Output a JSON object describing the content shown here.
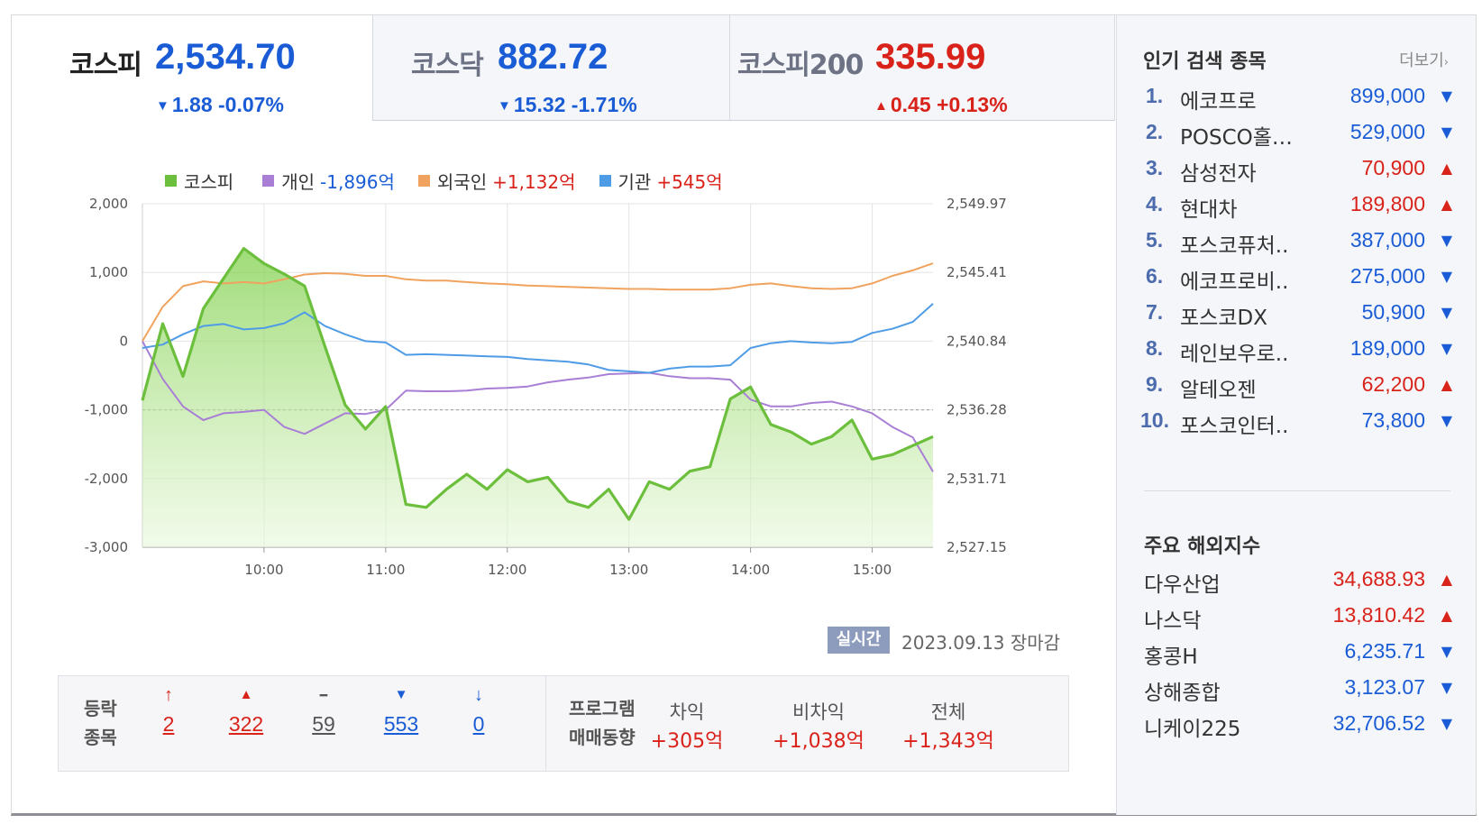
{
  "tabs": [
    {
      "name": "코스피",
      "value": "2,534.70",
      "direction": "down",
      "change": "1.88 -0.07%"
    },
    {
      "name": "코스닥",
      "value": "882.72",
      "direction": "down",
      "change": "15.32 -1.71%"
    },
    {
      "name": "코스피200",
      "value": "335.99",
      "direction": "up",
      "change": "0.45 +0.13%"
    }
  ],
  "legend": {
    "kospi": {
      "label": "코스피"
    },
    "individual": {
      "label": "개인",
      "value": "-1,896억"
    },
    "foreign": {
      "label": "외국인",
      "value": "+1,132억"
    },
    "institution": {
      "label": "기관",
      "value": "+545억"
    }
  },
  "colors": {
    "kospi": "#6cbf3c",
    "individual": "#a97fd6",
    "foreign": "#f0a35e",
    "institution": "#4f9ce6",
    "up": "#d9221a",
    "down": "#1a5cd6"
  },
  "chart_data": {
    "type": "line",
    "title": "",
    "x_ticks": [
      "10:00",
      "11:00",
      "12:00",
      "13:00",
      "14:00",
      "15:00"
    ],
    "x_range": [
      "09:00",
      "15:30"
    ],
    "y_left_ticks": [
      "2,000",
      "1,000",
      "0",
      "-1,000",
      "-2,000",
      "-3,000"
    ],
    "y_left_range": [
      -3000,
      2000
    ],
    "y_right_ticks": [
      "2,549.97",
      "2,545.41",
      "2,540.84",
      "2,536.28",
      "2,531.71",
      "2,527.15"
    ],
    "y_right_range": [
      2527.15,
      2549.97
    ],
    "reference_line_right": 2536.28,
    "grid": true,
    "legend_position": "top-left",
    "x": [
      "09:00",
      "09:10",
      "09:20",
      "09:30",
      "09:40",
      "09:50",
      "10:00",
      "10:10",
      "10:20",
      "10:30",
      "10:40",
      "10:50",
      "11:00",
      "11:10",
      "11:20",
      "11:30",
      "11:40",
      "11:50",
      "12:00",
      "12:10",
      "12:20",
      "12:30",
      "12:40",
      "12:50",
      "13:00",
      "13:10",
      "13:20",
      "13:30",
      "13:40",
      "13:50",
      "14:00",
      "14:10",
      "14:20",
      "14:30",
      "14:40",
      "14:50",
      "15:00",
      "15:10",
      "15:20",
      "15:30"
    ],
    "series": [
      {
        "name": "코스피",
        "axis": "right",
        "values": [
          2536.9,
          2542.0,
          2538.5,
          2543.0,
          2545.0,
          2547.0,
          2546.0,
          2545.3,
          2544.5,
          2540.5,
          2536.6,
          2535.0,
          2536.5,
          2530.0,
          2529.8,
          2531.0,
          2532.0,
          2531.0,
          2532.3,
          2531.5,
          2531.8,
          2530.2,
          2529.8,
          2531.0,
          2529.0,
          2531.5,
          2531.0,
          2532.2,
          2532.5,
          2537.0,
          2537.8,
          2535.3,
          2534.8,
          2534.0,
          2534.5,
          2535.6,
          2533.0,
          2533.3,
          2533.9,
          2534.5
        ]
      },
      {
        "name": "개인",
        "axis": "left",
        "values": [
          0,
          -550,
          -950,
          -1150,
          -1050,
          -1030,
          -1000,
          -1250,
          -1350,
          -1200,
          -1050,
          -1060,
          -1000,
          -720,
          -730,
          -730,
          -720,
          -690,
          -680,
          -660,
          -600,
          -560,
          -530,
          -480,
          -470,
          -460,
          -510,
          -540,
          -540,
          -560,
          -850,
          -950,
          -950,
          -900,
          -880,
          -950,
          -1050,
          -1250,
          -1400,
          -1900
        ]
      },
      {
        "name": "외국인",
        "axis": "left",
        "values": [
          0,
          500,
          800,
          870,
          840,
          860,
          840,
          900,
          970,
          990,
          980,
          950,
          950,
          900,
          880,
          880,
          860,
          840,
          830,
          810,
          800,
          790,
          780,
          770,
          760,
          760,
          750,
          750,
          750,
          770,
          820,
          840,
          800,
          770,
          760,
          770,
          840,
          950,
          1030,
          1132
        ]
      },
      {
        "name": "기관",
        "axis": "left",
        "values": [
          -100,
          -50,
          100,
          220,
          250,
          170,
          190,
          260,
          420,
          220,
          100,
          0,
          -20,
          -200,
          -190,
          -200,
          -210,
          -220,
          -230,
          -260,
          -280,
          -300,
          -340,
          -420,
          -440,
          -460,
          -400,
          -370,
          -370,
          -350,
          -100,
          -30,
          0,
          -20,
          -30,
          -10,
          120,
          180,
          280,
          545
        ]
      }
    ]
  },
  "chart_footer": {
    "badge": "실시간",
    "date": "2023.09.13 장마감"
  },
  "advance_decline": {
    "label_line1": "등락",
    "label_line2": "종목",
    "items": [
      {
        "key": "upper_limit",
        "icon": "↑",
        "count": "2"
      },
      {
        "key": "rising",
        "icon": "▲",
        "count": "322"
      },
      {
        "key": "unchanged",
        "icon": "━",
        "count": "59"
      },
      {
        "key": "falling",
        "icon": "▼",
        "count": "553"
      },
      {
        "key": "lower_limit",
        "icon": "↓",
        "count": "0"
      }
    ]
  },
  "program_trading": {
    "label_line1": "프로그램",
    "label_line2": "매매동향",
    "items": [
      {
        "label": "차익",
        "value": "+305억"
      },
      {
        "label": "비차익",
        "value": "+1,038억"
      },
      {
        "label": "전체",
        "value": "+1,343억"
      }
    ]
  },
  "popular": {
    "title": "인기 검색 종목",
    "more": "더보기",
    "items": [
      {
        "rank": "1.",
        "name": "에코프로",
        "price": "899,000",
        "direction": "down"
      },
      {
        "rank": "2.",
        "name": "POSCO홀…",
        "price": "529,000",
        "direction": "down"
      },
      {
        "rank": "3.",
        "name": "삼성전자",
        "price": "70,900",
        "direction": "up"
      },
      {
        "rank": "4.",
        "name": "현대차",
        "price": "189,800",
        "direction": "up"
      },
      {
        "rank": "5.",
        "name": "포스코퓨처..",
        "price": "387,000",
        "direction": "down"
      },
      {
        "rank": "6.",
        "name": "에코프로비..",
        "price": "275,000",
        "direction": "down"
      },
      {
        "rank": "7.",
        "name": "포스코DX",
        "price": "50,900",
        "direction": "down"
      },
      {
        "rank": "8.",
        "name": "레인보우로..",
        "price": "189,000",
        "direction": "down"
      },
      {
        "rank": "9.",
        "name": "알테오젠",
        "price": "62,200",
        "direction": "up"
      },
      {
        "rank": "10.",
        "name": "포스코인터..",
        "price": "73,800",
        "direction": "down"
      }
    ]
  },
  "overseas": {
    "title": "주요 해외지수",
    "items": [
      {
        "name": "다우산업",
        "value": "34,688.93",
        "direction": "up"
      },
      {
        "name": "나스닥",
        "value": "13,810.42",
        "direction": "up"
      },
      {
        "name": "홍콩H",
        "value": "6,235.71",
        "direction": "down"
      },
      {
        "name": "상해종합",
        "value": "3,123.07",
        "direction": "down"
      },
      {
        "name": "니케이225",
        "value": "32,706.52",
        "direction": "down"
      }
    ]
  }
}
